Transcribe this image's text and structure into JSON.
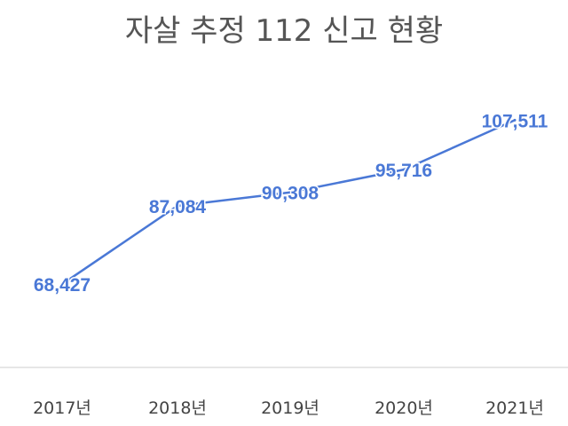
{
  "chart_data": {
    "type": "line",
    "title": "자살 추정 112 신고 현황",
    "categories": [
      "2017년",
      "2018년",
      "2019년",
      "2020년",
      "2021년"
    ],
    "series": [
      {
        "values": [
          68427,
          87084,
          90308,
          95716,
          107511
        ],
        "labels": [
          "68,427",
          "87,084",
          "90,308",
          "95,716",
          "107,511"
        ]
      }
    ],
    "ylim": [
      60000,
      115000
    ],
    "grid": false,
    "line_color": "#4a78d6",
    "label_color": "#4a78d6",
    "axis_color": "#cccccc",
    "title_color": "#555555"
  }
}
